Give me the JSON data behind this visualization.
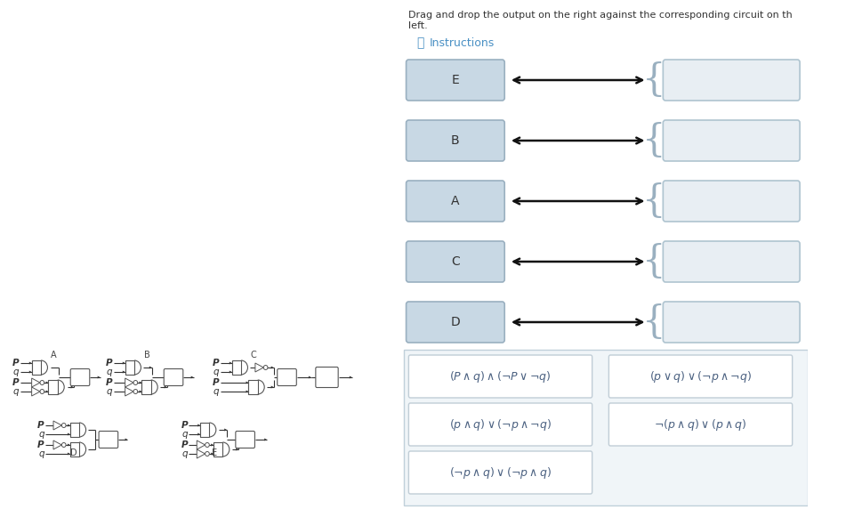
{
  "title_line1": "Drag and drop the output on the right against the corresponding circuit on th",
  "title_line2": "left.",
  "instructions_text": "Instructions",
  "bg_color": "#ffffff",
  "box_bg": "#c8d8e4",
  "box_border": "#9ab0c0",
  "right_box_bg": "#e8eef3",
  "right_box_border": "#afc4d0",
  "formula_panel_bg": "#f0f5f8",
  "formula_panel_border": "#c0d0da",
  "formula_box_bg": "#ffffff",
  "formula_box_border": "#c0cdd6",
  "circuit_labels": [
    "E",
    "B",
    "A",
    "C",
    "D"
  ],
  "text_color": "#333333",
  "arrow_color": "#111111",
  "info_color": "#4a90c4",
  "gate_color": "#555555",
  "formula_color": "#4a6080"
}
